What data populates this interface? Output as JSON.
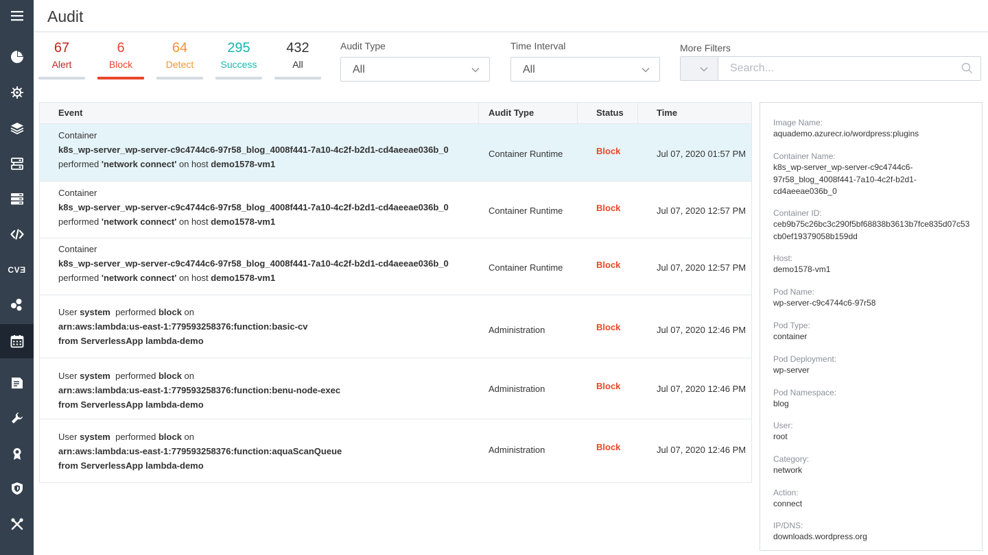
{
  "page": {
    "title": "Audit"
  },
  "sidebar": {
    "items": [
      {
        "icon": "hamburger-menu-icon"
      },
      {
        "icon": "dashboard-pie-icon"
      },
      {
        "icon": "bug-icon"
      },
      {
        "icon": "layers-icon"
      },
      {
        "icon": "network-settings-icon"
      },
      {
        "icon": "servers-icon"
      },
      {
        "icon": "code-icon"
      },
      {
        "icon": "cve-icon",
        "text": "CVƎ"
      },
      {
        "icon": "cluster-icon"
      },
      {
        "icon": "calendar-audit-icon",
        "active": true
      },
      {
        "icon": "report-icon"
      },
      {
        "icon": "wrench-icon"
      },
      {
        "icon": "badge-icon"
      },
      {
        "icon": "shield-icon"
      },
      {
        "icon": "tools-icon"
      }
    ]
  },
  "counters": [
    {
      "value": "67",
      "label": "Alert",
      "color": "#c0261d"
    },
    {
      "value": "6",
      "label": "Block",
      "color": "#e8472b",
      "selected": true
    },
    {
      "value": "64",
      "label": "Detect",
      "color": "#f0962f"
    },
    {
      "value": "295",
      "label": "Success",
      "color": "#14b7b0"
    },
    {
      "value": "432",
      "label": "All",
      "color": "#333333"
    }
  ],
  "filters": {
    "audit_type": {
      "label": "Audit Type",
      "value": "All"
    },
    "time_interval": {
      "label": "Time Interval",
      "value": "All"
    },
    "more_filters": {
      "label": "More Filters",
      "placeholder": "Search..."
    }
  },
  "table": {
    "headers": {
      "event": "Event",
      "audit_type": "Audit Type",
      "status": "Status",
      "time": "Time"
    },
    "rows": [
      {
        "line1": "Container",
        "line2": "k8s_wp-server_wp-server-c9c4744c6-97r58_blog_4008f441-7a10-4c2f-b2d1-cd4aeeae036b_0",
        "line3_pre": "performed ",
        "line3_action": "'network connect'",
        "line3_mid": " on host ",
        "line3_host": "demo1578-vm1",
        "type": "Container Runtime",
        "status": "Block",
        "time": "Jul 07, 2020 01:57 PM",
        "selected": true
      },
      {
        "line1": "Container",
        "line2": "k8s_wp-server_wp-server-c9c4744c6-97r58_blog_4008f441-7a10-4c2f-b2d1-cd4aeeae036b_0",
        "line3_pre": "performed ",
        "line3_action": "'network connect'",
        "line3_mid": " on host ",
        "line3_host": "demo1578-vm1",
        "type": "Container Runtime",
        "status": "Block",
        "time": "Jul 07, 2020 12:57 PM"
      },
      {
        "line1": "Container",
        "line2": "k8s_wp-server_wp-server-c9c4744c6-97r58_blog_4008f441-7a10-4c2f-b2d1-cd4aeeae036b_0",
        "line3_pre": "performed ",
        "line3_action": "'network connect'",
        "line3_mid": " on host ",
        "line3_host": "demo1578-vm1",
        "type": "Container Runtime",
        "status": "Block",
        "time": "Jul 07, 2020 12:57 PM"
      },
      {
        "u_pre": "User ",
        "u_user": "system",
        "u_mid": "  performed ",
        "u_action": "block",
        "u_post": " on",
        "line2": "arn:aws:lambda:us-east-1:779593258376:function:basic-cv",
        "line3": "from ServerlessApp lambda-demo",
        "type": "Administration",
        "status": "Block",
        "time": "Jul 07, 2020 12:46 PM"
      },
      {
        "u_pre": "User ",
        "u_user": "system",
        "u_mid": "  performed ",
        "u_action": "block",
        "u_post": " on",
        "line2": "arn:aws:lambda:us-east-1:779593258376:function:benu-node-exec",
        "line3": "from ServerlessApp lambda-demo",
        "type": "Administration",
        "status": "Block",
        "time": "Jul 07, 2020 12:46 PM"
      },
      {
        "u_pre": "User ",
        "u_user": "system",
        "u_mid": "  performed ",
        "u_action": "block",
        "u_post": " on",
        "line2": "arn:aws:lambda:us-east-1:779593258376:function:aquaScanQueue",
        "line3": "from ServerlessApp lambda-demo",
        "type": "Administration",
        "status": "Block",
        "time": "Jul 07, 2020 12:46 PM"
      }
    ]
  },
  "details": {
    "image_name_label": "Image Name:",
    "image_name": "aquademo.azurecr.io/wordpress:plugins",
    "container_name_label": "Container Name:",
    "container_name_1": "k8s_wp-server_wp-server-c9c4744c6-",
    "container_name_2": "97r58_blog_4008f441-7a10-4c2f-b2d1-",
    "container_name_3": "cd4aeeae036b_0",
    "container_id_label": "Container ID:",
    "container_id_1": "ceb9b75c26bc3c290f5bf68838b3613b7fce835d07c53",
    "container_id_2": "cb0ef19379058b159dd",
    "host_label": "Host:",
    "host": "demo1578-vm1",
    "pod_name_label": "Pod Name:",
    "pod_name": "wp-server-c9c4744c6-97r58",
    "pod_type_label": "Pod Type:",
    "pod_type": "container",
    "pod_deployment_label": "Pod Deployment:",
    "pod_deployment": "wp-server",
    "pod_namespace_label": "Pod Namespace:",
    "pod_namespace": "blog",
    "user_label": "User:",
    "user": "root",
    "category_label": "Category:",
    "category": "network",
    "action_label": "Action:",
    "action": "connect",
    "ip_dns_label": "IP/DNS:",
    "ip_dns": "downloads.wordpress.org"
  }
}
